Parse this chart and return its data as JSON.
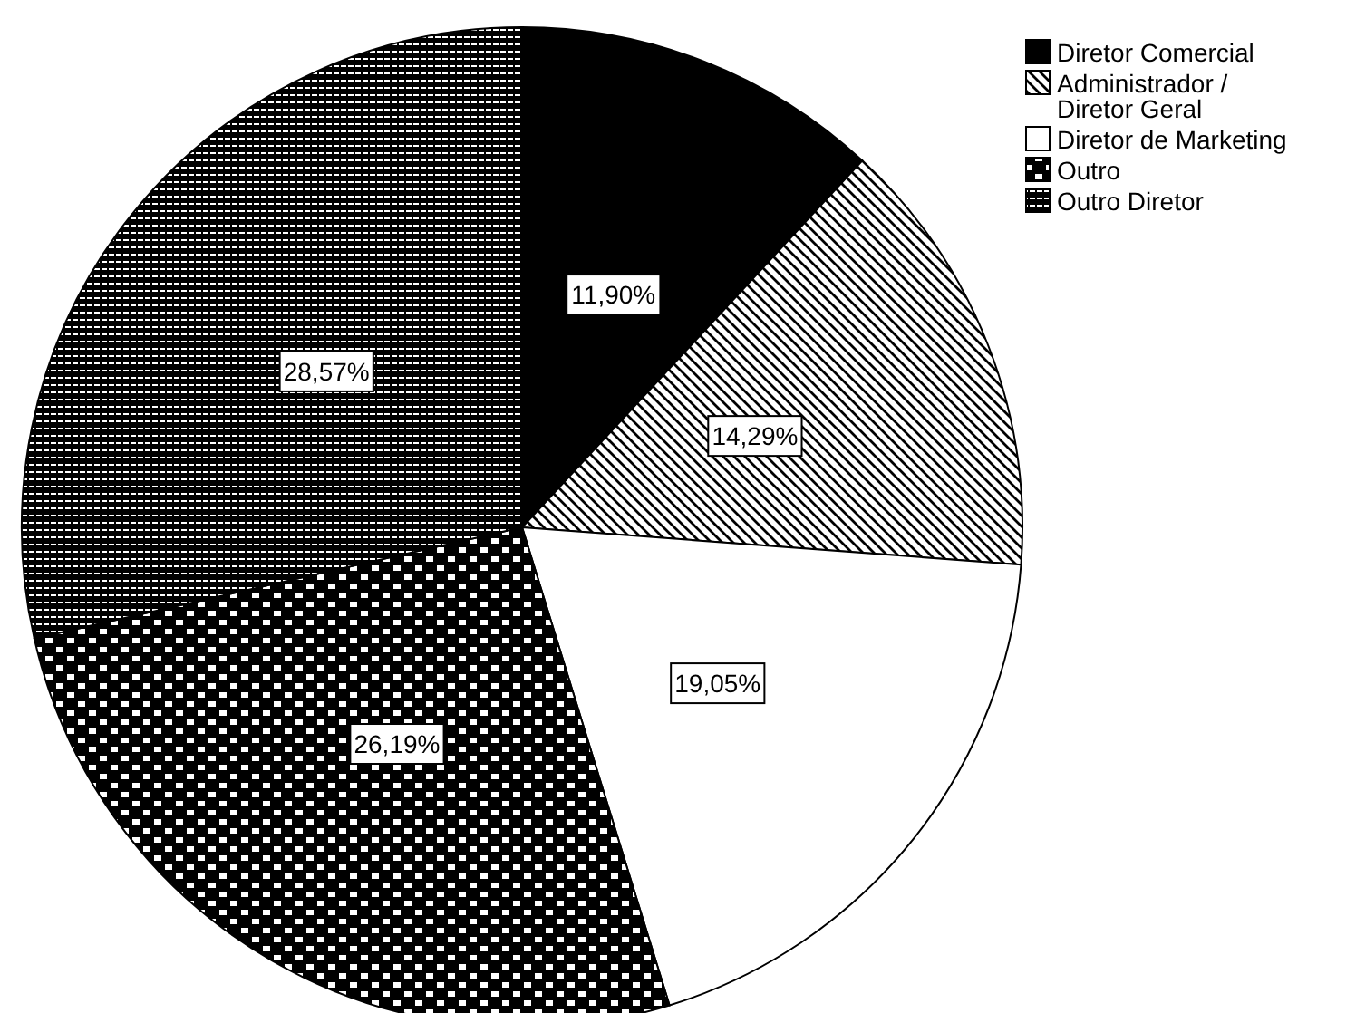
{
  "chart_data": {
    "type": "pie",
    "categories": [
      "Diretor Comercial",
      "Administrador / Diretor Geral",
      "Diretor de Marketing",
      "Outro",
      "Outro Diretor"
    ],
    "values": [
      11.9,
      14.29,
      19.05,
      26.19,
      28.57
    ],
    "value_labels": [
      "11,90%",
      "14,29%",
      "19,05%",
      "26,19%",
      "28,57%"
    ],
    "colors": [
      "#000000",
      "#000000",
      "#ffffff",
      "#000000",
      "#000000"
    ],
    "legend": "top right"
  }
}
